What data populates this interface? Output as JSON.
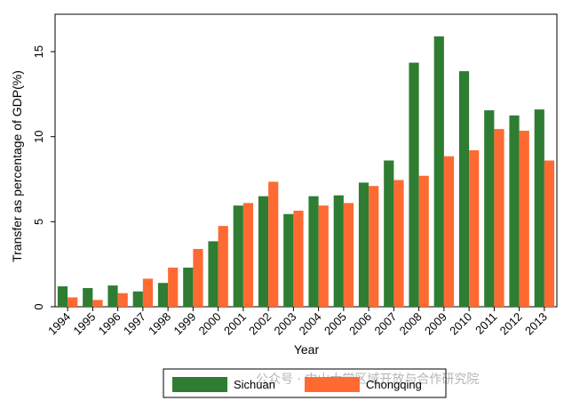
{
  "chart_data": {
    "type": "bar",
    "categories": [
      "1994",
      "1995",
      "1996",
      "1997",
      "1998",
      "1999",
      "2000",
      "2001",
      "2002",
      "2003",
      "2004",
      "2005",
      "2006",
      "2007",
      "2008",
      "2009",
      "2010",
      "2011",
      "2012",
      "2013"
    ],
    "series": [
      {
        "name": "Sichuan",
        "color": "#2e7d32",
        "values": [
          1.2,
          1.1,
          1.25,
          0.9,
          1.4,
          2.3,
          3.85,
          5.95,
          6.5,
          5.45,
          6.5,
          6.55,
          7.3,
          8.6,
          14.35,
          15.9,
          13.85,
          11.55,
          11.25,
          11.6
        ]
      },
      {
        "name": "Chongqing",
        "color": "#ff6a33",
        "values": [
          0.55,
          0.4,
          0.8,
          1.65,
          2.3,
          3.4,
          4.75,
          6.1,
          7.35,
          5.65,
          5.95,
          6.1,
          7.1,
          7.45,
          7.7,
          8.85,
          9.2,
          10.45,
          10.35,
          8.6
        ]
      }
    ],
    "xlabel": "Year",
    "ylabel": "Transfer as percentage of GDP(%)",
    "ylim": [
      0,
      17.2
    ],
    "yticks": [
      0,
      5,
      10,
      15
    ],
    "legend_position": "bottom",
    "grid": false
  },
  "watermark": "公众号 · 中山大学区域开放与合作研究院"
}
